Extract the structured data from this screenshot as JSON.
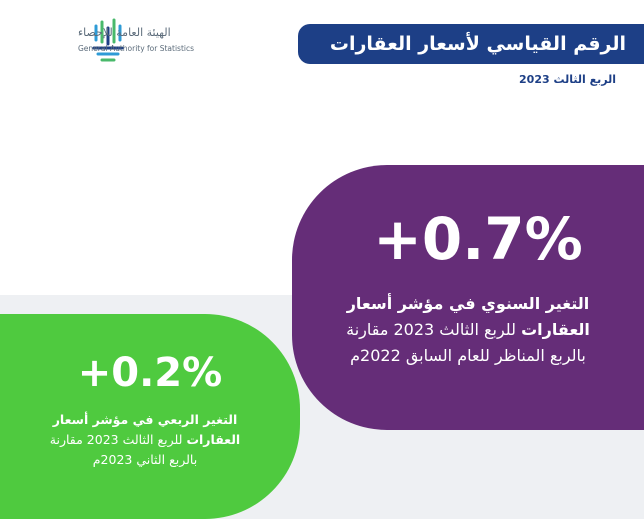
{
  "logo": {
    "arabic": "الهيئة العامة للإحصاء",
    "english": "General Authority for Statistics"
  },
  "header": {
    "title": "الرقم القياسي لأسعار العقارات",
    "subtitle": "الربع الثالث 2023"
  },
  "annual": {
    "value": "+0.7%",
    "line1": "التغير السنوي في مؤشر أسعار",
    "line2_bold": "العقارات",
    "line2": " للربع الثالث 2023 مقارنة",
    "line3": "بالربع المناظر للعام السابق 2022م"
  },
  "quarterly": {
    "value": "+0.2%",
    "line1": "التغير الربعي في مؤشر أسعار",
    "line2_bold": "العقارات",
    "line2": " للربع الثالث 2023 مقارنة",
    "line3": "بالربع الثاني 2023م"
  }
}
